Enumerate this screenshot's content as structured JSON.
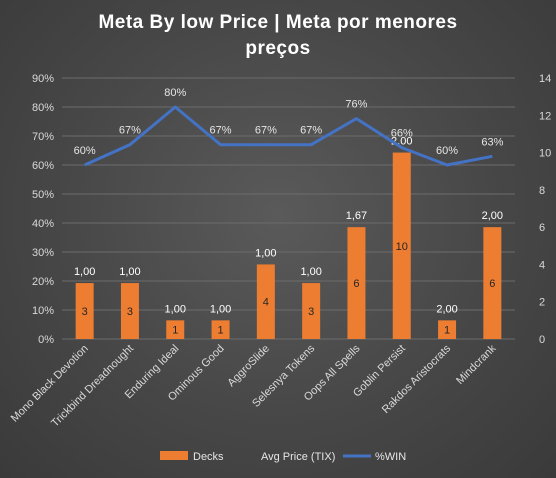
{
  "chart_data": {
    "type": "bar",
    "title_line1": "Meta By low Price  |  Meta por menores",
    "title_line2": "preços",
    "categories": [
      "Mono Black Devotion",
      "Trickbind Dreadnought",
      "Enduring Ideal",
      "Ominous Good",
      "AggroSlide",
      "Selesnya Tokens",
      "Oops All Spells",
      "Goblin Persist",
      "Rakdos Aristocrats",
      "Mindcrank"
    ],
    "series": [
      {
        "name": "Decks",
        "kind": "bar",
        "axis": "right",
        "values": [
          3,
          3,
          1,
          1,
          4,
          3,
          6,
          10,
          1,
          6
        ],
        "color": "#ED7D31"
      },
      {
        "name": "Avg Price (TIX)",
        "kind": "label",
        "values": [
          "1,00",
          "1,00",
          "1,00",
          "1,00",
          "1,00",
          "1,00",
          "1,67",
          "2,00",
          "2,00",
          "2,00"
        ]
      },
      {
        "name": "%WIN",
        "kind": "line",
        "axis": "left",
        "values": [
          60,
          67,
          80,
          67,
          67,
          67,
          76,
          66,
          60,
          63
        ],
        "labels": [
          "60%",
          "67%",
          "80%",
          "67%",
          "67%",
          "67%",
          "76%",
          "66%",
          "60%",
          "63%"
        ],
        "color": "#4472C4"
      }
    ],
    "left_axis": {
      "ticks": [
        "0%",
        "10%",
        "20%",
        "30%",
        "40%",
        "50%",
        "60%",
        "70%",
        "80%",
        "90%"
      ],
      "ylim": [
        0,
        90
      ]
    },
    "right_axis": {
      "ticks": [
        "0",
        "2",
        "4",
        "6",
        "8",
        "10",
        "12",
        "14"
      ],
      "ylim": [
        0,
        14
      ]
    },
    "legend_position": "bottom",
    "grid": true
  }
}
